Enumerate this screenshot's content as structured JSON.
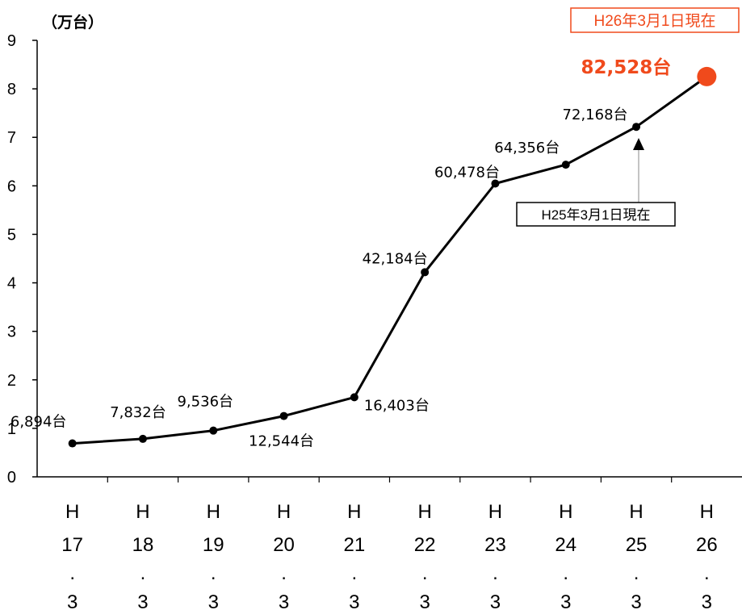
{
  "chart_data": {
    "type": "line",
    "unit_label": "（万台）",
    "categories": [
      [
        "H",
        "17",
        ".",
        "3"
      ],
      [
        "H",
        "18",
        ".",
        "3"
      ],
      [
        "H",
        "19",
        ".",
        "3"
      ],
      [
        "H",
        "20",
        ".",
        "3"
      ],
      [
        "H",
        "21",
        ".",
        "3"
      ],
      [
        "H",
        "22",
        ".",
        "3"
      ],
      [
        "H",
        "23",
        ".",
        "3"
      ],
      [
        "H",
        "24",
        ".",
        "3"
      ],
      [
        "H",
        "25",
        ".",
        "3"
      ],
      [
        "H",
        "26",
        ".",
        "3"
      ]
    ],
    "values": [
      0.6894,
      0.7832,
      0.9536,
      1.2544,
      1.6403,
      4.2184,
      6.0478,
      6.4356,
      7.2168,
      8.2528
    ],
    "data_labels": [
      "6,894台",
      "7,832台",
      "9,536台",
      "12,544台",
      "16,403台",
      "42,184台",
      "60,478台",
      "64,356台",
      "72,168台",
      "82,528台"
    ],
    "y_ticks": [
      "0",
      "1",
      "2",
      "3",
      "4",
      "5",
      "6",
      "7",
      "8",
      "9"
    ],
    "ylim": [
      0,
      9
    ],
    "highlight_color": "#f04a1c",
    "line_color": "#000000",
    "annotations": {
      "current_badge": "H26年3月1日現在",
      "prev_note": "H25年3月1日現在"
    }
  }
}
